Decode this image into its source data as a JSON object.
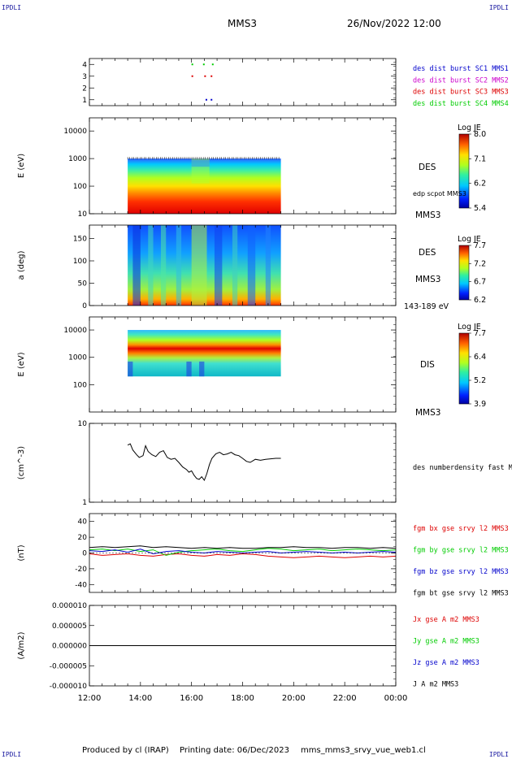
{
  "header": {
    "corner_label": "IPDLI",
    "spacecraft": "MMS3",
    "datetime": "26/Nov/2022 12:00"
  },
  "footer": {
    "produced_by": "Produced by cl (IRAP)",
    "printing_date": "Printing date: 06/Dec/2023",
    "filename": "mms_mms3_srvy_vue_web1.cl"
  },
  "chart_data": [
    {
      "type": "scatter",
      "panel": "burst-flags",
      "yticks": [
        "1",
        "2",
        "3",
        "4"
      ],
      "ylim": [
        0.5,
        4.5
      ],
      "xlim": [
        0,
        12
      ],
      "series": [
        {
          "name": "des dist burst SC1 MMS1",
          "color": "#0000cc",
          "x": [
            4.55,
            4.75
          ],
          "y": [
            1,
            1
          ]
        },
        {
          "name": "des dist burst SC2 MMS2",
          "color": "#cc00cc",
          "x": [],
          "y": []
        },
        {
          "name": "des dist burst SC3 MMS3",
          "color": "#dd0000",
          "x": [
            4.0,
            4.5,
            4.75
          ],
          "y": [
            3,
            3,
            3
          ]
        },
        {
          "name": "des dist burst SC4 MMS4",
          "color": "#00cc00",
          "x": [
            4.0,
            4.45,
            4.8
          ],
          "y": [
            4,
            4,
            4
          ]
        }
      ]
    },
    {
      "type": "heatmap",
      "panel": "des-energy",
      "ylabel": "E (eV)",
      "yscale": "log",
      "ylim": [
        10,
        30000
      ],
      "yticks": [
        "10",
        "100",
        "1000",
        "10000"
      ],
      "data_xrange": [
        1.5,
        7.5
      ],
      "side_label": "DES",
      "extra_label": "edp scpot MMS3",
      "spacecraft_label": "MMS3",
      "colorbar": {
        "title": "Log JE",
        "ticks": [
          "8.0",
          "7.1",
          "6.2",
          "5.4"
        ]
      }
    },
    {
      "type": "heatmap",
      "panel": "des-pitch-angle",
      "ylabel": "a (deg)",
      "ylim": [
        0,
        180
      ],
      "yticks": [
        "0",
        "50",
        "100",
        "150"
      ],
      "data_xrange": [
        1.5,
        7.5
      ],
      "side_label": "DES",
      "spacecraft_label": "MMS3",
      "energy_range": "143-189 eV",
      "colorbar": {
        "title": "Log JE",
        "ticks": [
          "7.7",
          "7.2",
          "6.7",
          "6.2"
        ]
      }
    },
    {
      "type": "heatmap",
      "panel": "dis-energy",
      "ylabel": "E (eV)",
      "yscale": "log",
      "ylim": [
        10,
        30000
      ],
      "yticks": [
        "100",
        "1000",
        "10000"
      ],
      "data_xrange": [
        1.5,
        7.5
      ],
      "side_label": "DIS",
      "spacecraft_label": "MMS3",
      "colorbar": {
        "title": "Log JE",
        "ticks": [
          "7.7",
          "6.4",
          "5.2",
          "3.9"
        ]
      }
    },
    {
      "type": "line",
      "panel": "density",
      "ylabel": "(cm^-3)",
      "yscale": "log",
      "ylim": [
        1,
        10
      ],
      "yticks": [
        "1",
        "10"
      ],
      "series": [
        {
          "name": "des numberdensity fast M",
          "color": "#000000",
          "x": [
            1.5,
            1.6,
            1.7,
            1.85,
            1.95,
            2.1,
            2.2,
            2.3,
            2.45,
            2.6,
            2.75,
            2.9,
            3.05,
            3.2,
            3.35,
            3.5,
            3.65,
            3.8,
            3.9,
            4.0,
            4.1,
            4.2,
            4.3,
            4.4,
            4.5,
            4.6,
            4.7,
            4.8,
            4.95,
            5.1,
            5.25,
            5.4,
            5.55,
            5.7,
            5.85,
            6.0,
            6.15,
            6.3,
            6.5,
            6.7,
            6.9,
            7.1,
            7.3,
            7.5
          ],
          "y": [
            5.3,
            5.5,
            4.6,
            4.0,
            3.7,
            3.9,
            5.2,
            4.4,
            4.0,
            3.8,
            4.3,
            4.5,
            3.7,
            3.5,
            3.6,
            3.2,
            2.8,
            2.6,
            2.4,
            2.5,
            2.2,
            2.0,
            1.95,
            2.1,
            1.9,
            2.3,
            3.0,
            3.6,
            4.1,
            4.3,
            4.0,
            4.1,
            4.3,
            4.0,
            3.9,
            3.6,
            3.3,
            3.2,
            3.5,
            3.4,
            3.5,
            3.55,
            3.6,
            3.6
          ]
        }
      ]
    },
    {
      "type": "line",
      "panel": "magnetic-field",
      "ylabel": "(nT)",
      "ylim": [
        -50,
        50
      ],
      "yticks": [
        "-40",
        "-20",
        "0",
        "20",
        "40"
      ],
      "series": [
        {
          "name": "fgm bx gse srvy l2 MMS3",
          "color": "#dd0000",
          "x": [
            0,
            0.5,
            1,
            1.5,
            2,
            2.5,
            3,
            3.5,
            4,
            4.5,
            5,
            5.5,
            6,
            6.5,
            7,
            7.5,
            8,
            8.5,
            9,
            9.5,
            10,
            10.5,
            11,
            11.5,
            12
          ],
          "y": [
            -1,
            -3,
            -2,
            -1,
            -3,
            -4,
            -2,
            -1,
            -3,
            -4,
            -2,
            -3,
            -1,
            -2,
            -4,
            -5,
            -6,
            -5,
            -4,
            -5,
            -6,
            -5,
            -4,
            -5,
            -4
          ]
        },
        {
          "name": "fgm by gse srvy l2 MMS3",
          "color": "#00cc00",
          "x": [
            0,
            0.5,
            1,
            1.5,
            2,
            2.5,
            3,
            3.5,
            4,
            4.5,
            5,
            5.5,
            6,
            6.5,
            7,
            7.5,
            8,
            8.5,
            9,
            9.5,
            10,
            10.5,
            11,
            11.5,
            12
          ],
          "y": [
            4,
            5,
            3,
            5,
            2,
            4,
            -3,
            1,
            3,
            4,
            5,
            3,
            2,
            4,
            6,
            5,
            3,
            4,
            5,
            3,
            4,
            5,
            4,
            3,
            4
          ]
        },
        {
          "name": "fgm bz gse srvy l2 MMS3",
          "color": "#0000cc",
          "x": [
            0,
            0.5,
            1,
            1.5,
            2,
            2.5,
            3,
            3.5,
            4,
            4.5,
            5,
            5.5,
            6,
            6.5,
            7,
            7.5,
            8,
            8.5,
            9,
            9.5,
            10,
            10.5,
            11,
            11.5,
            12
          ],
          "y": [
            3,
            2,
            4,
            1,
            5,
            -1,
            2,
            3,
            1,
            0,
            2,
            1,
            0,
            1,
            2,
            0,
            1,
            2,
            1,
            0,
            1,
            0,
            1,
            2,
            1
          ]
        },
        {
          "name": "fgm bt gse srvy l2 MMS3",
          "color": "#000000",
          "x": [
            0,
            0.5,
            1,
            1.5,
            2,
            2.5,
            3,
            3.5,
            4,
            4.5,
            5,
            5.5,
            6,
            6.5,
            7,
            7.5,
            8,
            8.5,
            9,
            9.5,
            10,
            10.5,
            11,
            11.5,
            12
          ],
          "y": [
            7,
            8,
            7,
            8,
            9,
            7,
            8,
            7,
            6,
            7,
            6,
            7,
            6,
            6,
            7,
            7,
            8,
            7,
            7,
            6,
            7,
            7,
            6,
            7,
            6
          ]
        }
      ]
    },
    {
      "type": "line",
      "panel": "current-density",
      "ylabel": "(A/m2)",
      "ylim": [
        -1e-05,
        1e-05
      ],
      "yticks": [
        "-0.000010",
        "-0.000005",
        "0.000000",
        "0.000005",
        "0.000010"
      ],
      "series": [
        {
          "name": "Jx gse A m2 MMS3",
          "color": "#dd0000",
          "x": [
            0,
            12
          ],
          "y": [
            0,
            0
          ]
        },
        {
          "name": "Jy gse A m2 MMS3",
          "color": "#00cc00",
          "x": [
            0,
            12
          ],
          "y": [
            0,
            0
          ]
        },
        {
          "name": "Jz gse A m2 MMS3",
          "color": "#0000cc",
          "x": [
            0,
            12
          ],
          "y": [
            0,
            0
          ]
        },
        {
          "name": "J A m2 MMS3",
          "color": "#000000",
          "x": [
            0,
            12
          ],
          "y": [
            0,
            0
          ]
        }
      ]
    }
  ],
  "x_axis": {
    "ticks": [
      "12:00",
      "14:00",
      "16:00",
      "18:00",
      "20:00",
      "22:00",
      "00:00"
    ],
    "xlim": [
      0,
      12
    ]
  }
}
